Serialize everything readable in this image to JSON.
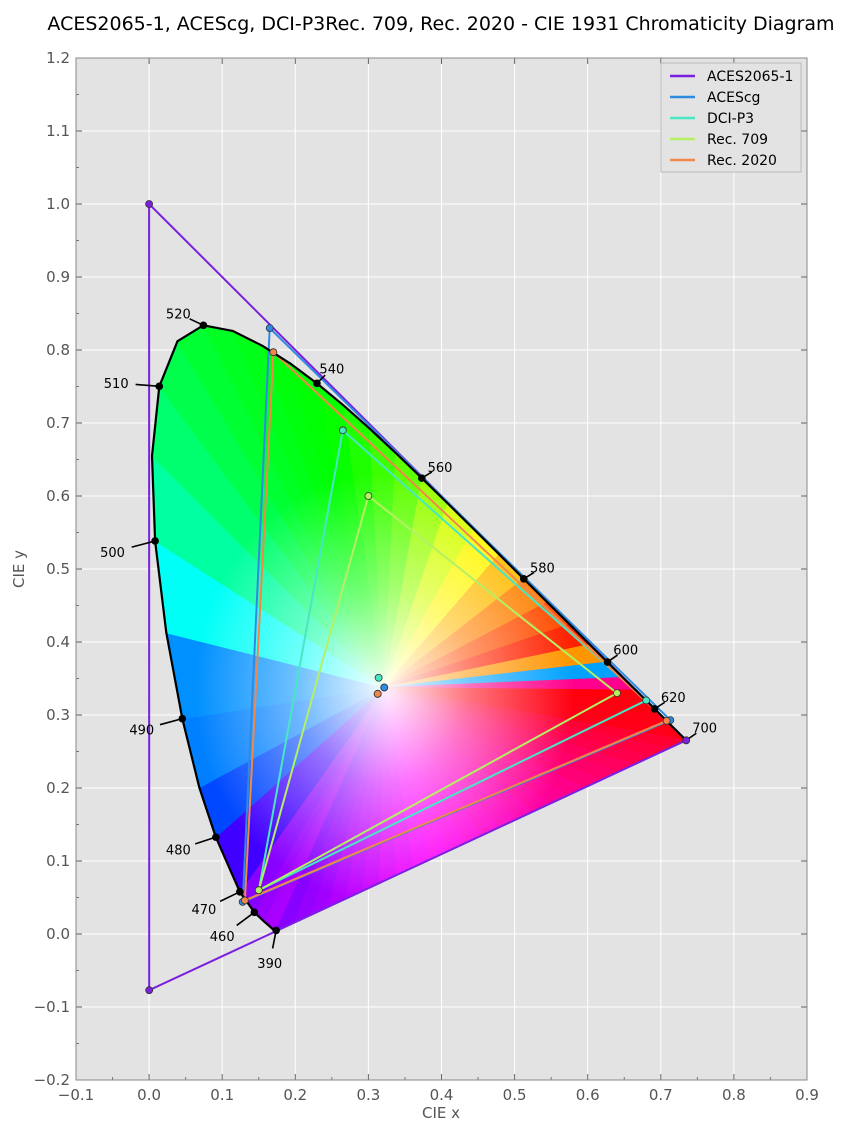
{
  "chart_data": {
    "type": "scatter",
    "title": "ACES2065-1, ACEScg, DCI-P3Rec. 709, Rec. 2020 - CIE 1931 Chromaticity Diagram",
    "xlabel": "CIE x",
    "ylabel": "CIE y",
    "xlim": [
      -0.1,
      0.9
    ],
    "ylim": [
      -0.2,
      1.2
    ],
    "x_ticks": [
      "−0.1",
      "0.0",
      "0.1",
      "0.2",
      "0.3",
      "0.4",
      "0.5",
      "0.6",
      "0.7",
      "0.8",
      "0.9"
    ],
    "y_ticks": [
      "−0.2",
      "−0.1",
      "0.0",
      "0.1",
      "0.2",
      "0.3",
      "0.4",
      "0.5",
      "0.6",
      "0.7",
      "0.8",
      "0.9",
      "1.0",
      "1.1",
      "1.2"
    ],
    "grid": true,
    "legend_position": "top-right",
    "spectral_locus": [
      [
        0.1741,
        0.005
      ],
      [
        0.1738,
        0.0049
      ],
      [
        0.1733,
        0.0048
      ],
      [
        0.1726,
        0.0048
      ],
      [
        0.1714,
        0.0051
      ],
      [
        0.1689,
        0.0069
      ],
      [
        0.1644,
        0.0109
      ],
      [
        0.1566,
        0.0177
      ],
      [
        0.144,
        0.0297
      ],
      [
        0.1241,
        0.0578
      ],
      [
        0.0913,
        0.1327
      ],
      [
        0.0687,
        0.2007
      ],
      [
        0.0454,
        0.295
      ],
      [
        0.0235,
        0.4127
      ],
      [
        0.0082,
        0.5384
      ],
      [
        0.0039,
        0.6548
      ],
      [
        0.0139,
        0.7502
      ],
      [
        0.0389,
        0.812
      ],
      [
        0.0743,
        0.8338
      ],
      [
        0.1142,
        0.8262
      ],
      [
        0.1547,
        0.8059
      ],
      [
        0.1929,
        0.7816
      ],
      [
        0.2296,
        0.7543
      ],
      [
        0.2658,
        0.7243
      ],
      [
        0.3016,
        0.6923
      ],
      [
        0.3373,
        0.6589
      ],
      [
        0.3731,
        0.6245
      ],
      [
        0.4087,
        0.5896
      ],
      [
        0.4441,
        0.5547
      ],
      [
        0.4788,
        0.5202
      ],
      [
        0.5125,
        0.4866
      ],
      [
        0.5448,
        0.4544
      ],
      [
        0.5752,
        0.4242
      ],
      [
        0.6029,
        0.3965
      ],
      [
        0.627,
        0.3725
      ],
      [
        0.6482,
        0.3514
      ],
      [
        0.6658,
        0.334
      ],
      [
        0.6801,
        0.3197
      ],
      [
        0.6915,
        0.3083
      ],
      [
        0.7006,
        0.2993
      ],
      [
        0.7079,
        0.292
      ],
      [
        0.714,
        0.2859
      ],
      [
        0.719,
        0.2809
      ],
      [
        0.723,
        0.277
      ],
      [
        0.726,
        0.274
      ],
      [
        0.7283,
        0.2717
      ],
      [
        0.73,
        0.27
      ],
      [
        0.7311,
        0.2689
      ],
      [
        0.732,
        0.268
      ],
      [
        0.7327,
        0.2673
      ],
      [
        0.7334,
        0.2666
      ],
      [
        0.734,
        0.266
      ],
      [
        0.7344,
        0.2656
      ],
      [
        0.7346,
        0.2654
      ],
      [
        0.7347,
        0.2653
      ]
    ],
    "wavelength_markers": [
      {
        "label": "390",
        "point": [
          0.1738,
          0.0049
        ],
        "text": [
          0.165,
          -0.04
        ]
      },
      {
        "label": "460",
        "point": [
          0.144,
          0.0297
        ],
        "text": [
          0.1,
          -0.003
        ]
      },
      {
        "label": "470",
        "point": [
          0.1241,
          0.0578
        ],
        "text": [
          0.075,
          0.034
        ]
      },
      {
        "label": "480",
        "point": [
          0.0913,
          0.1327
        ],
        "text": [
          0.04,
          0.116
        ]
      },
      {
        "label": "490",
        "point": [
          0.0454,
          0.295
        ],
        "text": [
          -0.01,
          0.28
        ]
      },
      {
        "label": "500",
        "point": [
          0.0082,
          0.5384
        ],
        "text": [
          -0.05,
          0.523
        ]
      },
      {
        "label": "510",
        "point": [
          0.0139,
          0.7502
        ],
        "text": [
          -0.045,
          0.755
        ]
      },
      {
        "label": "520",
        "point": [
          0.0743,
          0.8338
        ],
        "text": [
          0.04,
          0.85
        ]
      },
      {
        "label": "540",
        "point": [
          0.2296,
          0.7543
        ],
        "text": [
          0.25,
          0.775
        ]
      },
      {
        "label": "560",
        "point": [
          0.3731,
          0.6245
        ],
        "text": [
          0.398,
          0.64
        ]
      },
      {
        "label": "580",
        "point": [
          0.5125,
          0.4866
        ],
        "text": [
          0.538,
          0.502
        ]
      },
      {
        "label": "600",
        "point": [
          0.627,
          0.3725
        ],
        "text": [
          0.652,
          0.39
        ]
      },
      {
        "label": "620",
        "point": [
          0.6915,
          0.3083
        ],
        "text": [
          0.717,
          0.325
        ]
      },
      {
        "label": "700",
        "point": [
          0.7347,
          0.2653
        ],
        "text": [
          0.76,
          0.283
        ]
      }
    ],
    "series": [
      {
        "name": "ACES2065-1",
        "color": "#7b1fe0",
        "primaries": [
          [
            0.7347,
            0.2653
          ],
          [
            0.0,
            1.0
          ],
          [
            0.0001,
            -0.077
          ]
        ],
        "whitepoint": [
          0.32168,
          0.33767
        ]
      },
      {
        "name": "ACEScg",
        "color": "#2f8ae2",
        "primaries": [
          [
            0.713,
            0.293
          ],
          [
            0.165,
            0.83
          ],
          [
            0.128,
            0.044
          ]
        ],
        "whitepoint": [
          0.32168,
          0.33767
        ]
      },
      {
        "name": "DCI-P3",
        "color": "#49e6c4",
        "primaries": [
          [
            0.68,
            0.32
          ],
          [
            0.265,
            0.69
          ],
          [
            0.15,
            0.06
          ]
        ],
        "whitepoint": [
          0.314,
          0.351
        ]
      },
      {
        "name": "Rec. 709",
        "color": "#b4f064",
        "primaries": [
          [
            0.64,
            0.33
          ],
          [
            0.3,
            0.6
          ],
          [
            0.15,
            0.06
          ]
        ],
        "whitepoint": [
          0.3127,
          0.329
        ]
      },
      {
        "name": "Rec. 2020",
        "color": "#f2874a",
        "primaries": [
          [
            0.708,
            0.292
          ],
          [
            0.17,
            0.797
          ],
          [
            0.131,
            0.046
          ]
        ],
        "whitepoint": [
          0.3127,
          0.329
        ]
      }
    ]
  }
}
